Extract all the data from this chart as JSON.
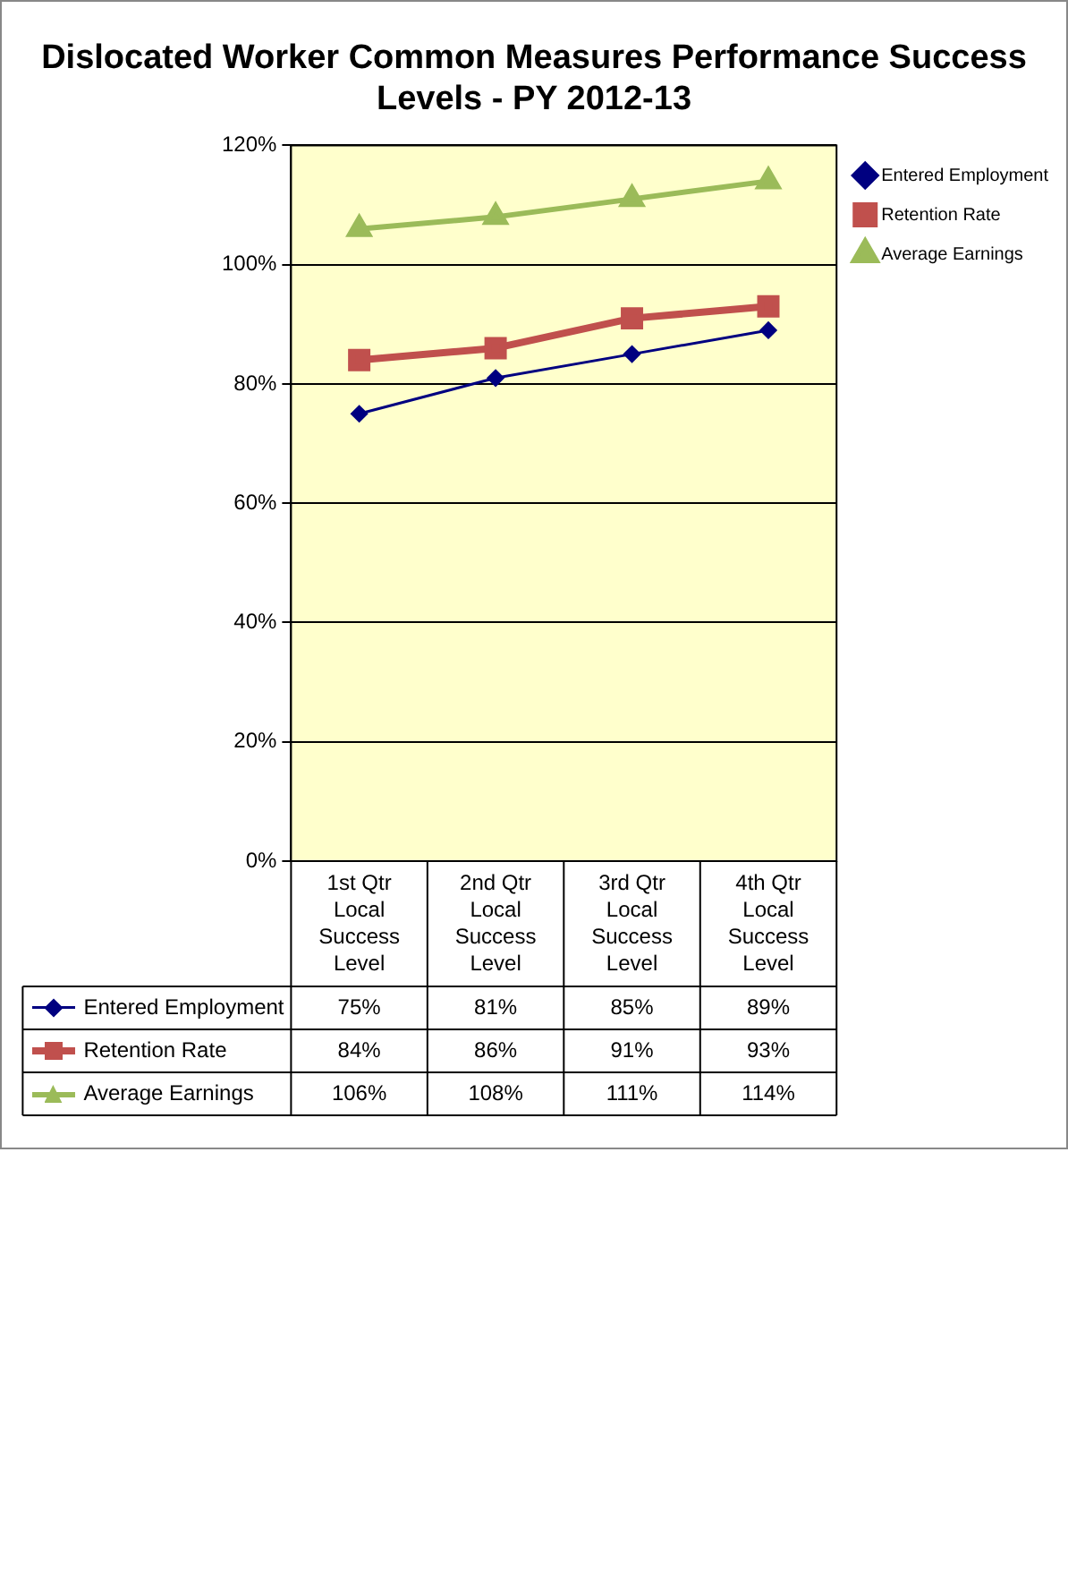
{
  "chart_data": {
    "type": "line",
    "title": "Dislocated Worker Common Measures Performance Success Levels - PY 2012-13",
    "categories": [
      "1st Qtr Local Success Level",
      "2nd Qtr Local Success Level",
      "3rd Qtr Local Success Level",
      "4th Qtr Local Success Level"
    ],
    "series": [
      {
        "name": "Entered Employment",
        "color": "#000080",
        "marker": "diamond",
        "values": [
          75,
          81,
          85,
          89
        ],
        "value_labels": [
          "75%",
          "81%",
          "85%",
          "89%"
        ]
      },
      {
        "name": "Retention Rate",
        "color": "#c0504d",
        "marker": "square",
        "values": [
          84,
          86,
          91,
          93
        ],
        "value_labels": [
          "84%",
          "86%",
          "91%",
          "93%"
        ]
      },
      {
        "name": "Average Earnings",
        "color": "#9bbb59",
        "marker": "triangle",
        "values": [
          106,
          108,
          111,
          114
        ],
        "value_labels": [
          "106%",
          "108%",
          "111%",
          "114%"
        ]
      }
    ],
    "ylim": [
      0,
      120
    ],
    "yticks": [
      {
        "value": 0,
        "label": "0%"
      },
      {
        "value": 20,
        "label": "20%"
      },
      {
        "value": 40,
        "label": "40%"
      },
      {
        "value": 60,
        "label": "60%"
      },
      {
        "value": 80,
        "label": "80%"
      },
      {
        "value": 100,
        "label": "100%"
      },
      {
        "value": 120,
        "label": "120%"
      }
    ],
    "grid": "y",
    "legend": "right"
  }
}
